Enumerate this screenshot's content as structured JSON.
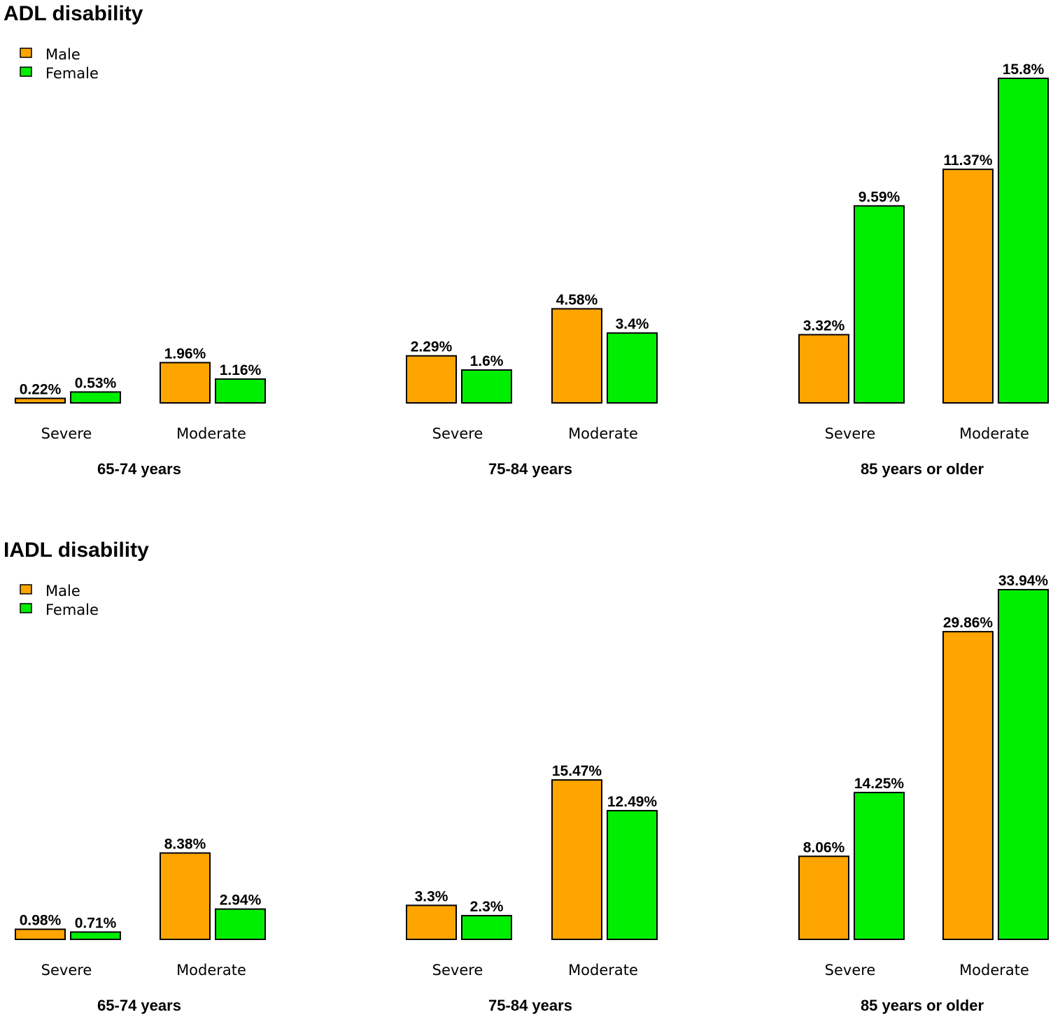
{
  "chart_data": [
    {
      "type": "bar",
      "title": "ADL disability",
      "legend": [
        {
          "name": "Male",
          "color": "#FFA500"
        },
        {
          "name": "Female",
          "color": "#00EE00"
        }
      ],
      "legend_position": "top-left",
      "groups": [
        "65-74 years",
        "75-84 years",
        "85 years or older"
      ],
      "categories": [
        "Severe",
        "Moderate"
      ],
      "series": [
        {
          "name": "Male",
          "color": "#FFA500",
          "values": [
            [
              0.22,
              1.96
            ],
            [
              2.29,
              4.58
            ],
            [
              3.32,
              11.37
            ]
          ]
        },
        {
          "name": "Female",
          "color": "#00EE00",
          "values": [
            [
              0.53,
              1.16
            ],
            [
              1.6,
              3.4
            ],
            [
              9.59,
              15.8
            ]
          ]
        }
      ],
      "labels": {
        "Male": [
          [
            "0.22%",
            "1.96%"
          ],
          [
            "2.29%",
            "4.58%"
          ],
          [
            "3.32%",
            "11.37%"
          ]
        ],
        "Female": [
          [
            "0.53%",
            "1.16%"
          ],
          [
            "1.6%",
            "3.4%"
          ],
          [
            "9.59%",
            "15.8%"
          ]
        ]
      },
      "ylim": [
        0,
        16.5
      ],
      "grid": false
    },
    {
      "type": "bar",
      "title": "IADL disability",
      "legend": [
        {
          "name": "Male",
          "color": "#FFA500"
        },
        {
          "name": "Female",
          "color": "#00EE00"
        }
      ],
      "legend_position": "top-left",
      "groups": [
        "65-74 years",
        "75-84 years",
        "85 years or older"
      ],
      "categories": [
        "Severe",
        "Moderate"
      ],
      "series": [
        {
          "name": "Male",
          "color": "#FFA500",
          "values": [
            [
              0.98,
              8.38
            ],
            [
              3.3,
              15.47
            ],
            [
              8.06,
              29.86
            ]
          ]
        },
        {
          "name": "Female",
          "color": "#00EE00",
          "values": [
            [
              0.71,
              2.94
            ],
            [
              2.3,
              12.49
            ],
            [
              14.25,
              33.94
            ]
          ]
        }
      ],
      "labels": {
        "Male": [
          [
            "0.98%",
            "8.38%"
          ],
          [
            "3.3%",
            "15.47%"
          ],
          [
            "8.06%",
            "29.86%"
          ]
        ],
        "Female": [
          [
            "0.71%",
            "2.94%"
          ],
          [
            "2.3%",
            "12.49%"
          ],
          [
            "14.25%",
            "33.94%"
          ]
        ]
      },
      "ylim": [
        0,
        35.4
      ],
      "grid": false
    }
  ]
}
